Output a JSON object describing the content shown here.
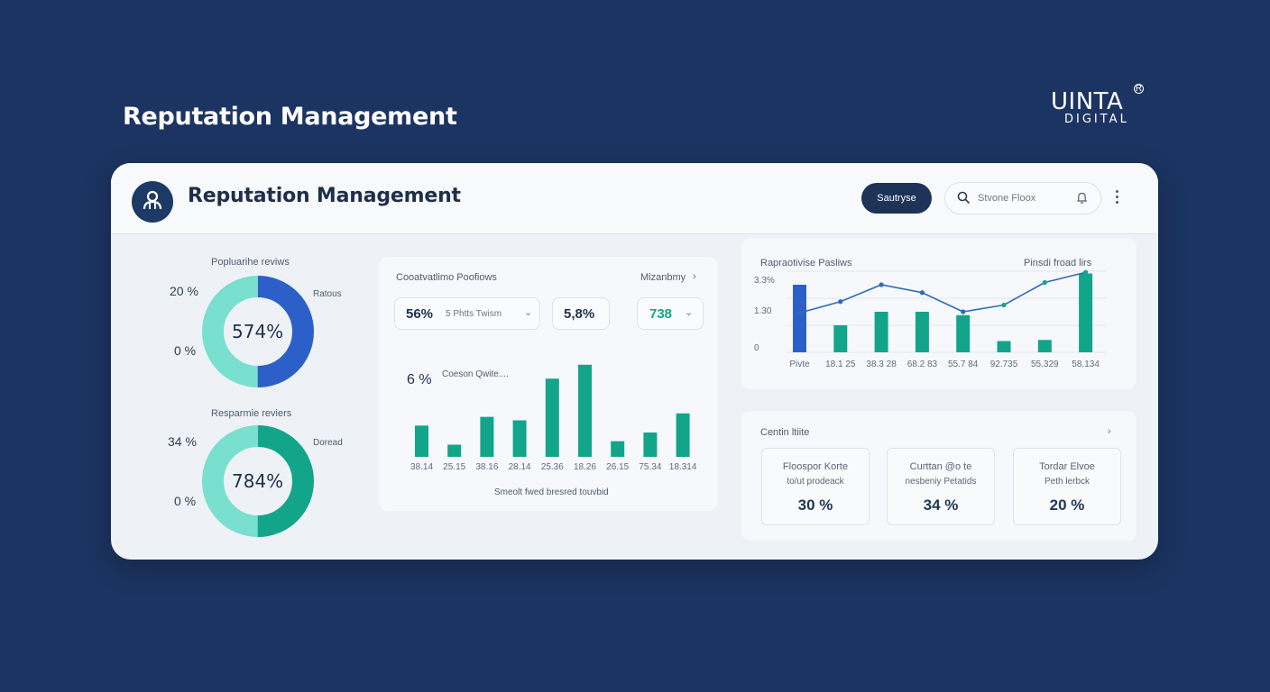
{
  "page": {
    "title": "Reputation Management"
  },
  "brand": {
    "name": "UINTA",
    "subtitle": "DIGITAL",
    "mark": "R"
  },
  "header": {
    "title": "Reputation Management",
    "action_label": "Sautryse",
    "search_placeholder": "Stvone Floox"
  },
  "colors": {
    "navy": "#1c3461",
    "blue": "#2d5fc8",
    "teal": "#13a58a",
    "mint": "#79dfcf"
  },
  "donuts": [
    {
      "title": "Popluarihe reviws",
      "side_label": "Ratous",
      "pct_top": "20 %",
      "pct_bottom": "0 %",
      "value": "574%",
      "fraction": 0.5
    },
    {
      "title": "Resparmie reviers",
      "side_label": "Doread",
      "pct_top": "34 %",
      "pct_bottom": "0 %",
      "value": "784%",
      "fraction": 0.5
    }
  ],
  "middle_card": {
    "title": "Cooatvatlimo Poofiows",
    "right_label": "Mizanbmy",
    "chips": [
      {
        "value": "56%",
        "label": "5 Phtts Twism"
      },
      {
        "value": "5,8%",
        "label": ""
      },
      {
        "value": "738",
        "label": ""
      }
    ],
    "chart_label": "6 %",
    "chart_sublabel": "Coeson Qwite....",
    "caption": "Smeolt fwed bresred touvbid"
  },
  "chart_data": [
    {
      "type": "bar",
      "categories": [
        "38.14",
        "25.15",
        "38.16",
        "28.14",
        "25.36",
        "18.26",
        "26.15",
        "75.34",
        "18.314"
      ],
      "values": [
        18,
        7,
        23,
        21,
        45,
        53,
        9,
        14,
        25
      ],
      "ylim": [
        0,
        56
      ]
    },
    {
      "type": "bar",
      "title": "Rapraotivise Pasliws",
      "legend": "Pinsdi froad lirs",
      "categories": [
        "Pivte",
        "18.1 25",
        "38.3 28",
        "68.2 83",
        "55.7 84",
        "92.735",
        "55.329",
        "58.134"
      ],
      "values": [
        6,
        2.4,
        3.6,
        3.6,
        3.3,
        1.0,
        1.1,
        7.0
      ],
      "line_values": [
        3.5,
        4.5,
        6.0,
        5.3,
        3.6,
        4.2,
        6.2,
        7.1
      ],
      "y_ticks": [
        "3.3%",
        "1.30",
        "0"
      ],
      "ylim": [
        0,
        7.2
      ]
    }
  ],
  "top_right": {
    "title": "Rapraotivise Pasliws",
    "legend": "Pinsdi froad lirs",
    "y_ticks": [
      "3.3%",
      "1.30",
      "0"
    ],
    "categories": [
      "Pivte",
      "18.1 25",
      "38.3 28",
      "68.2 83",
      "55.7 84",
      "92.735",
      "55.329",
      "58.134"
    ]
  },
  "bottom_right": {
    "title": "Centin ltiite",
    "stats": [
      {
        "line1": "Floospor Korte",
        "line2": "to/ut prodeack",
        "value": "30 %"
      },
      {
        "line1": "Curttan @o te",
        "line2": "nesbeniy Petatids",
        "value": "34 %"
      },
      {
        "line1": "Tordar Elvoe",
        "line2": "Peth lerbck",
        "value": "20 %"
      }
    ]
  }
}
